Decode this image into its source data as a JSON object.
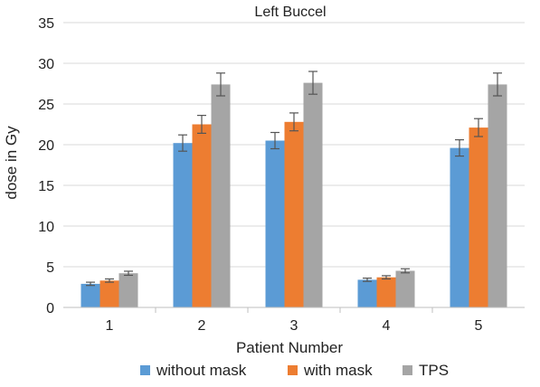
{
  "chart_data": {
    "type": "bar",
    "title": "Left Buccel",
    "xlabel": "Patient Number",
    "ylabel": "dose in Gy",
    "categories": [
      "1",
      "2",
      "3",
      "4",
      "5"
    ],
    "ylim": [
      0,
      35
    ],
    "yticks": [
      0,
      5,
      10,
      15,
      20,
      25,
      30,
      35
    ],
    "grid": "horizontal",
    "legend_position": "bottom",
    "series": [
      {
        "name": "without mask",
        "color": "#5B9BD5",
        "values": [
          2.9,
          20.2,
          20.5,
          3.4,
          19.6
        ],
        "errors": [
          0.2,
          1.0,
          1.0,
          0.2,
          1.0
        ]
      },
      {
        "name": "with mask",
        "color": "#ED7D31",
        "values": [
          3.3,
          22.5,
          22.8,
          3.7,
          22.1
        ],
        "errors": [
          0.2,
          1.1,
          1.1,
          0.2,
          1.1
        ]
      },
      {
        "name": "TPS",
        "color": "#A5A5A5",
        "values": [
          4.2,
          27.4,
          27.6,
          4.5,
          27.4
        ],
        "errors": [
          0.25,
          1.4,
          1.4,
          0.25,
          1.4
        ]
      }
    ]
  }
}
